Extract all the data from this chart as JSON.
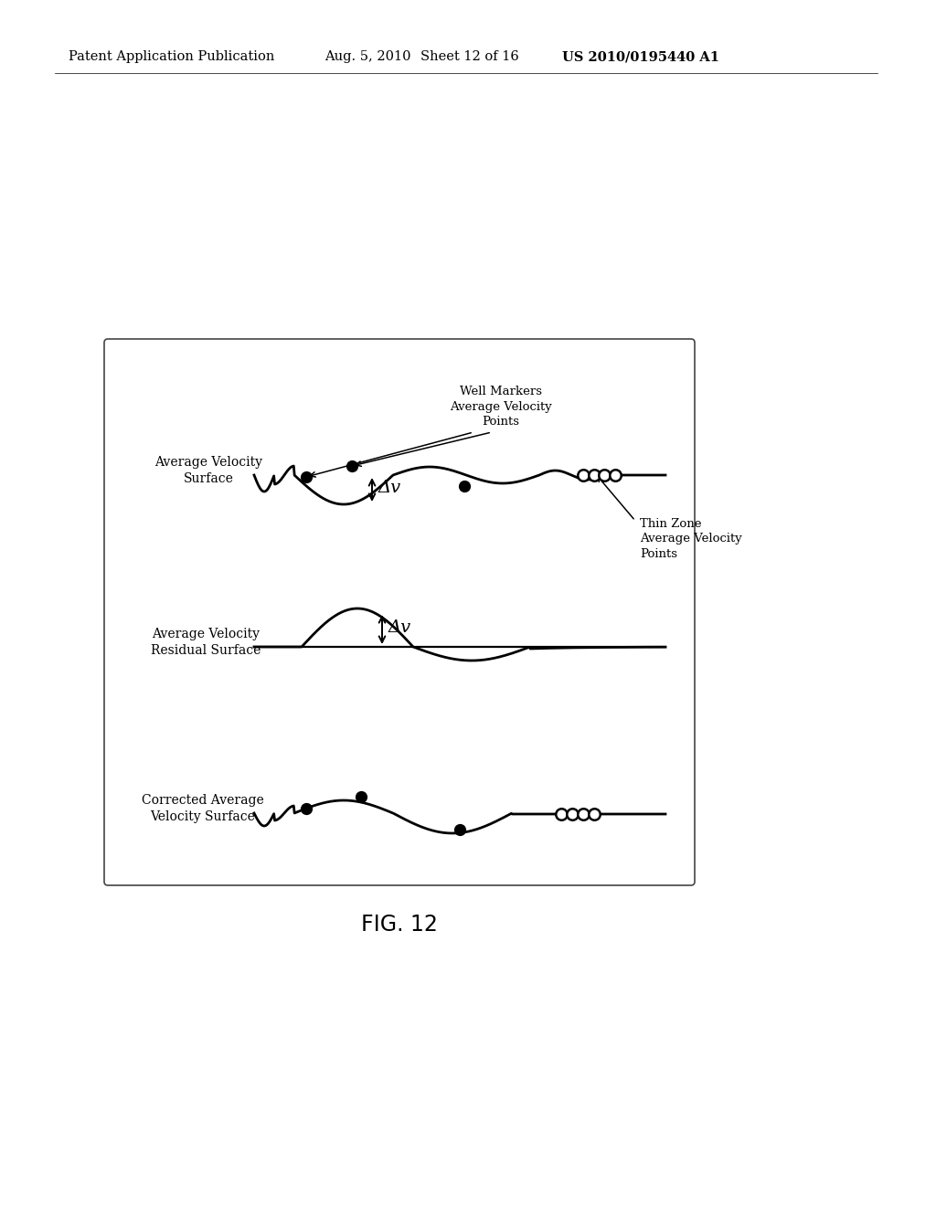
{
  "bg_color": "#ffffff",
  "header_text": "Patent Application Publication",
  "header_date": "Aug. 5, 2010",
  "header_sheet": "Sheet 12 of 16",
  "header_patent": "US 2010/0195440 A1",
  "fig_label": "FIG. 12",
  "label1_line1": "Average Velocity",
  "label1_line2": "Surface",
  "label2_line1": "Average Velocity",
  "label2_line2": "Residual Surface",
  "label3_line1": "Corrected Average",
  "label3_line2": "Velocity Surface",
  "ann1_line1": "Well Markers",
  "ann1_line2": "Average Velocity",
  "ann1_line3": "Points",
  "ann2_line1": "Thin Zone",
  "ann2_line2": "Average Velocity",
  "ann2_line3": "Points",
  "delta_v": "Δv"
}
